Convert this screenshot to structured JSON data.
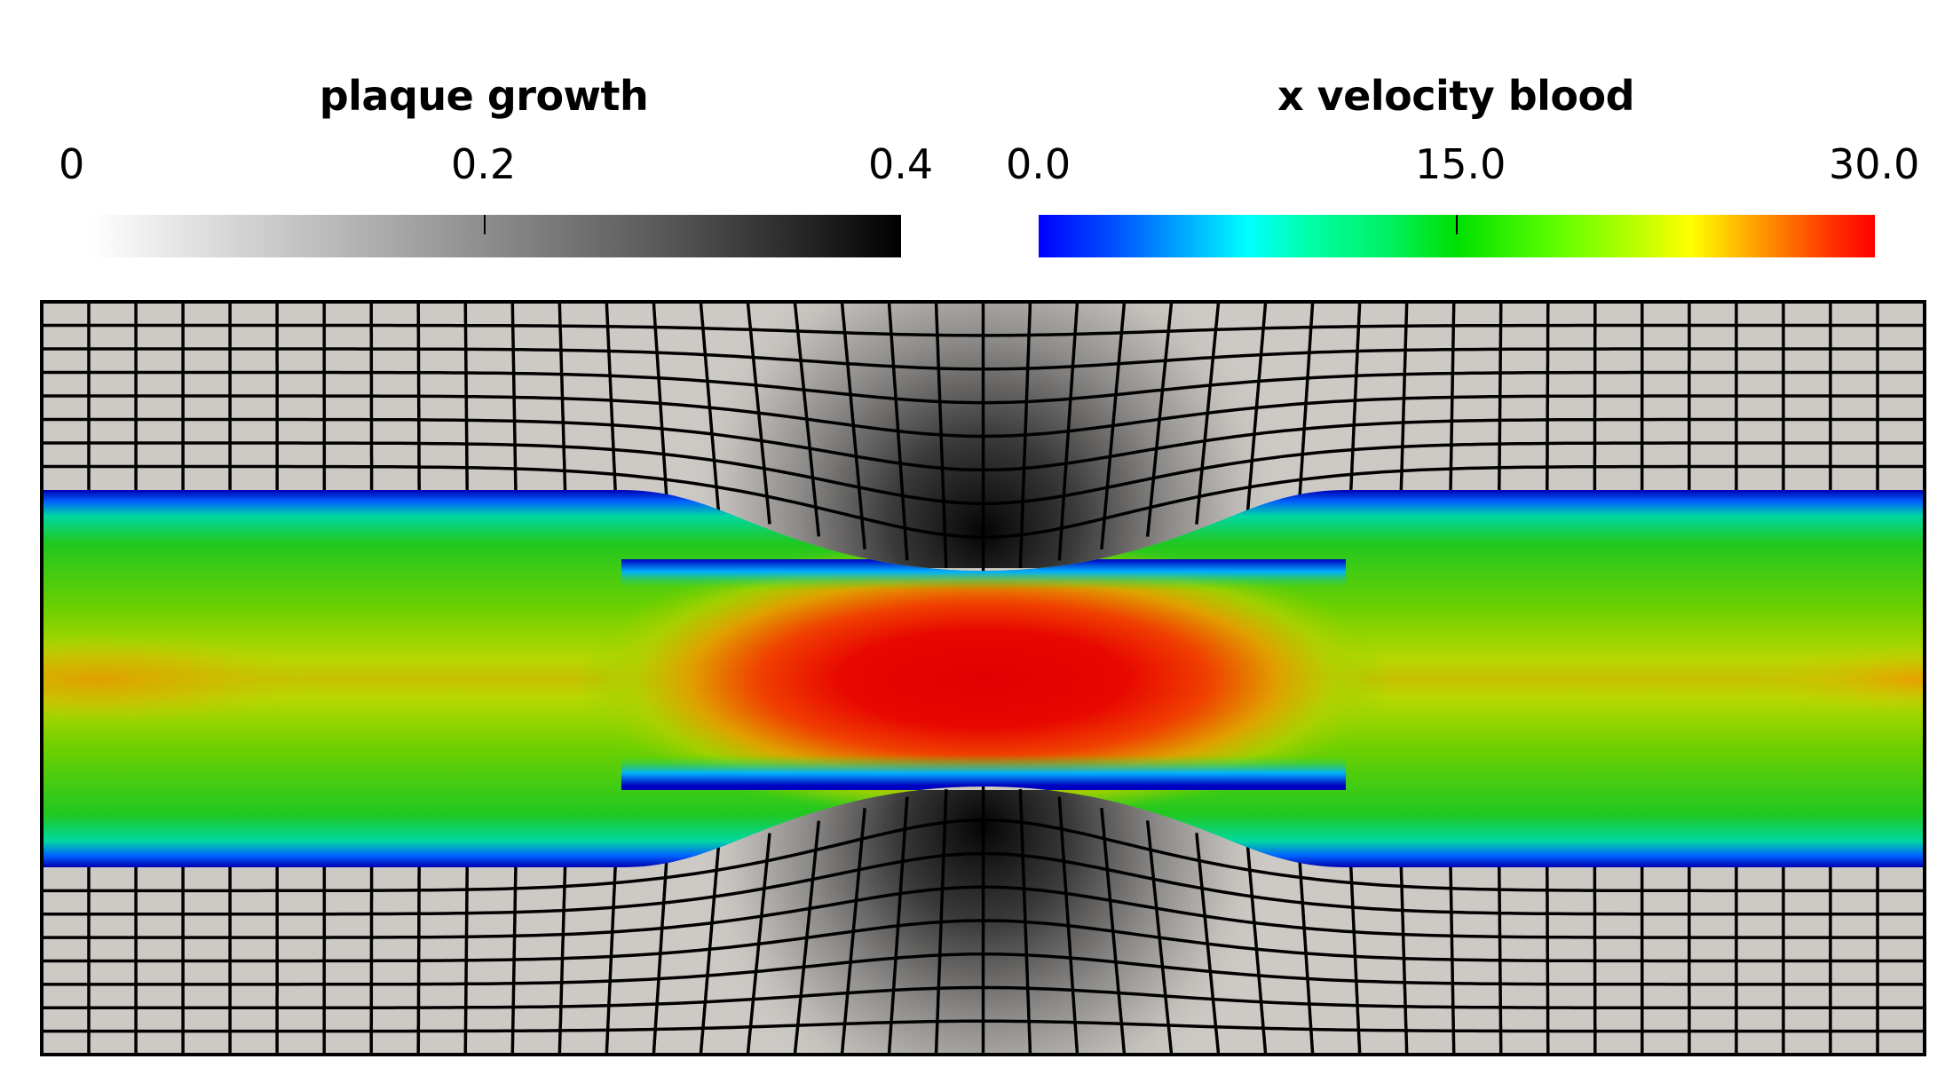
{
  "colorbars": [
    {
      "title": "plaque growth",
      "ticks": [
        "0",
        "0.2",
        "0.4"
      ],
      "range": [
        0,
        0.4
      ],
      "colormap": "grayscale",
      "colors": [
        "#ffffff",
        "#000000"
      ]
    },
    {
      "title": "x velocity blood",
      "ticks": [
        "0.0",
        "15.0",
        "30.0"
      ],
      "range": [
        0.0,
        30.0
      ],
      "colormap": "jet",
      "colors": [
        "#0000ff",
        "#00ffff",
        "#00e000",
        "#ffff00",
        "#ff0000"
      ]
    }
  ],
  "field": {
    "channel": "blood vessel lumen with stenosis",
    "colors": {
      "wall_base": "#cdcac6",
      "plaque_max": "#050505",
      "mesh_line": "#000000",
      "core_velocity": "#e00000",
      "inlet_velocity": "#30d000",
      "near_wall": "#0000c0"
    }
  }
}
